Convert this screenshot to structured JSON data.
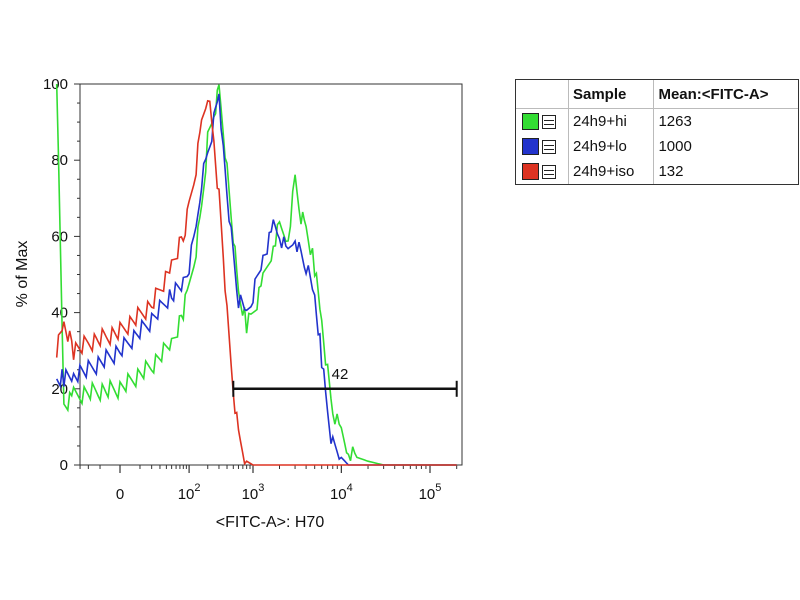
{
  "chart_data": {
    "type": "line",
    "xlabel": "<FITC-A>: H70",
    "ylabel": "% of Max",
    "x_scale": "biexponential",
    "ylim": [
      0,
      100
    ],
    "y_ticks": [
      "0",
      "20",
      "40",
      "60",
      "80",
      "100"
    ],
    "x_tick_labels": [
      {
        "label": "0",
        "value": 0
      },
      {
        "label": "10",
        "sup": "2",
        "value": 100
      },
      {
        "label": "10",
        "sup": "3",
        "value": 1000
      },
      {
        "label": "10",
        "sup": "4",
        "value": 10000
      },
      {
        "label": "10",
        "sup": "5",
        "value": 100000
      }
    ],
    "gate": {
      "label": "42",
      "x_from": 500,
      "x_to": 200000,
      "y": 20
    },
    "series": [
      {
        "name": "24h9+hi",
        "color": "#33dd33",
        "x": [
          -80,
          -60,
          -40,
          -20,
          0,
          20,
          50,
          80,
          100,
          130,
          160,
          200,
          250,
          300,
          350,
          400,
          500,
          600,
          800,
          1000,
          1300,
          1700,
          2000,
          2500,
          3000,
          3500,
          4000,
          5000,
          6000,
          7000,
          8000,
          10000,
          12000,
          15000,
          20000,
          30000,
          50000,
          100000,
          200000
        ],
        "values": [
          100,
          16,
          18,
          19,
          20,
          26,
          32,
          40,
          47,
          57,
          68,
          85,
          92,
          98,
          88,
          78,
          60,
          45,
          37,
          40,
          48,
          58,
          62,
          60,
          75,
          65,
          62,
          52,
          38,
          24,
          14,
          8,
          4,
          2,
          1,
          0,
          0,
          0,
          0
        ]
      },
      {
        "name": "24h9+lo",
        "color": "#2233cc",
        "x": [
          -80,
          -60,
          -40,
          -20,
          0,
          20,
          50,
          80,
          100,
          130,
          160,
          200,
          250,
          300,
          350,
          400,
          500,
          600,
          800,
          1000,
          1300,
          1700,
          2000,
          2500,
          3000,
          3500,
          4000,
          5000,
          6000,
          7000,
          8000,
          10000,
          12000,
          15000,
          20000,
          30000,
          50000,
          100000,
          200000
        ],
        "values": [
          22,
          23,
          24,
          25,
          30,
          38,
          45,
          48,
          52,
          62,
          75,
          82,
          90,
          98,
          82,
          72,
          55,
          43,
          40,
          45,
          55,
          62,
          60,
          55,
          60,
          55,
          52,
          44,
          28,
          14,
          5,
          2,
          0,
          0,
          0,
          0,
          0,
          0,
          0
        ]
      },
      {
        "name": "24h9+iso",
        "color": "#dd3322",
        "x": [
          -80,
          -60,
          -40,
          -20,
          0,
          20,
          50,
          80,
          100,
          130,
          160,
          200,
          250,
          300,
          350,
          400,
          500,
          600,
          800,
          1000,
          1300,
          2000,
          5000,
          100000,
          200000
        ],
        "values": [
          30,
          37,
          30,
          32,
          35,
          42,
          52,
          60,
          68,
          78,
          90,
          98,
          85,
          70,
          55,
          40,
          20,
          8,
          1,
          0,
          0,
          0,
          0,
          0,
          0
        ]
      }
    ]
  },
  "legend": {
    "headers": [
      "Sample",
      "Mean:<FITC-A>"
    ],
    "rows": [
      {
        "sample": "24h9+hi",
        "mean": "1263",
        "color": "#33dd33"
      },
      {
        "sample": "24h9+lo",
        "mean": "1000",
        "color": "#2233cc"
      },
      {
        "sample": "24h9+iso",
        "mean": "132",
        "color": "#dd3322"
      }
    ]
  }
}
